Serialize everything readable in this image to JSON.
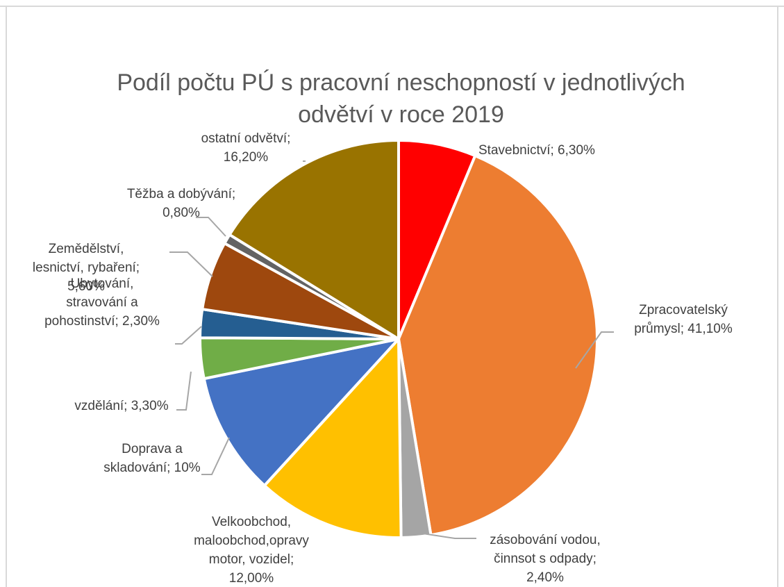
{
  "chart_data": {
    "type": "pie",
    "title_lines": [
      "Podíl počtu PÚ s pracovní neschopností v jednotlivých",
      "odvětví v roce 2019"
    ],
    "slices": [
      {
        "name": "Stavebnictví",
        "value": 6.3,
        "color": "#ff0000",
        "label_lines": [
          "Stavebnictví; 6,30%"
        ]
      },
      {
        "name": "Zpracovatelský průmysl",
        "value": 41.1,
        "color": "#ed7d31",
        "label_lines": [
          "Zpracovatelský",
          "průmysl; 41,10%"
        ]
      },
      {
        "name": "zásobování vodou, činnsot s odpady",
        "value": 2.4,
        "color": "#a5a5a5",
        "label_lines": [
          "zásobování vodou,",
          "činnsot s odpady;",
          "2,40%"
        ]
      },
      {
        "name": "Velkoobchod, maloobchod,opravy motor, vozidel",
        "value": 12.0,
        "color": "#ffc000",
        "label_lines": [
          "Velkoobchod,",
          "maloobchod,opravy",
          "motor, vozidel;",
          "12,00%"
        ]
      },
      {
        "name": "Doprava a skladování",
        "value": 10.0,
        "color": "#4472c4",
        "label_lines": [
          "Doprava a",
          "skladování; 10%"
        ]
      },
      {
        "name": "vzdělání",
        "value": 3.3,
        "color": "#70ad47",
        "label_lines": [
          "vzdělání; 3,30%"
        ]
      },
      {
        "name": "Ubytování, stravování a pohostinství",
        "value": 2.3,
        "color": "#255e91",
        "label_lines": [
          "Ubytování,",
          "stravování a",
          "pohostinství; 2,30%"
        ]
      },
      {
        "name": "Zemědělství, lesnictví, rybaření",
        "value": 5.6,
        "color": "#9e480e",
        "label_lines": [
          "Zemědělství,",
          "lesnictví, rybaření;",
          "5,60%"
        ]
      },
      {
        "name": "Těžba a dobývání",
        "value": 0.8,
        "color": "#636363",
        "label_lines": [
          "Těžba a dobývání;",
          "0,80%"
        ]
      },
      {
        "name": "ostatní odvětví",
        "value": 16.2,
        "color": "#997300",
        "label_lines": [
          "ostatní odvětví;",
          "16,20%"
        ]
      }
    ],
    "legend": "none",
    "leader_color": "#a6a6a6"
  }
}
